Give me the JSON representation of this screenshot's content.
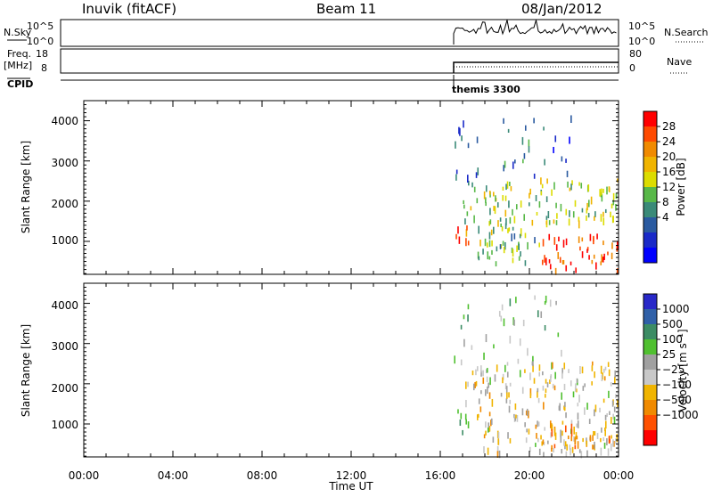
{
  "header": {
    "station": "Inuvik (fitACF)",
    "beam": "Beam 11",
    "date": "08/Jan/2012"
  },
  "top_panels": {
    "nsky_label": "N.Sky",
    "nsky_ticks": [
      "10^5",
      "10^0"
    ],
    "nsearch_label": "N.Search",
    "nsearch_ticks": [
      "10^5",
      "10^0"
    ],
    "freq_label": "Freq.",
    "freq_unit": "[MHz]",
    "freq_ticks": [
      "18",
      "8"
    ],
    "nave_label": "Nave",
    "nave_ticks": [
      "80",
      "0"
    ],
    "cpid_label": "CPID",
    "cpid_value": "themis 3300",
    "data_start_hour": 16.6
  },
  "power_panel": {
    "ylabel": "Slant Range [km]",
    "yticks": [
      "4000",
      "3000",
      "2000",
      "1000"
    ],
    "colorbar_label": "Power [dB]",
    "colorbar_ticks": [
      "28",
      "24",
      "20",
      "16",
      "12",
      "8",
      "4"
    ],
    "colorbar_colors": [
      "#ff0000",
      "#ff4a00",
      "#f08a00",
      "#f0b400",
      "#dcdc00",
      "#58b848",
      "#3a8a78",
      "#2a5aa0",
      "#1a2ac8",
      "#0000ff"
    ]
  },
  "velocity_panel": {
    "ylabel": "Slant Range [km]",
    "yticks": [
      "4000",
      "3000",
      "2000",
      "1000"
    ],
    "colorbar_label": "Velocity  [m s⁻¹]",
    "colorbar_ticks": [
      "1000",
      "500",
      "100",
      "25",
      "−25",
      "−100",
      "−500",
      "−1000"
    ],
    "colorbar_colors": [
      "#2828c8",
      "#3060a8",
      "#3c8c64",
      "#50c030",
      "#a0a0a0",
      "#c8c8c8",
      "#f0b400",
      "#f08a00",
      "#ff5000",
      "#ff0000"
    ]
  },
  "x_axis": {
    "xlabel": "Time UT",
    "tick_labels": [
      "00:00",
      "04:00",
      "08:00",
      "12:00",
      "16:00",
      "20:00",
      "00:00"
    ]
  },
  "chart_data": [
    {
      "type": "heatmap",
      "title": "Power [dB]",
      "xlabel": "Time UT",
      "ylabel": "Slant Range [km]",
      "xlim_hours": [
        0,
        24
      ],
      "ylim": [
        180,
        4500
      ],
      "data_present_hours": [
        16.6,
        24
      ],
      "clim": [
        0,
        32
      ],
      "echo_regions": [
        {
          "t_start": 16.6,
          "t_end": 17.4,
          "range_min": 900,
          "range_max": 1500,
          "typical_value": 26
        },
        {
          "t_start": 17.4,
          "t_end": 20.5,
          "range_min": 500,
          "range_max": 1500,
          "typical_value": 14
        },
        {
          "t_start": 20.5,
          "t_end": 24.0,
          "range_min": 300,
          "range_max": 1200,
          "typical_value": 28
        },
        {
          "t_start": 17.0,
          "t_end": 24.0,
          "range_min": 1500,
          "range_max": 2600,
          "typical_value": 16
        },
        {
          "t_start": 16.6,
          "t_end": 22.0,
          "range_min": 2600,
          "range_max": 4200,
          "typical_value": 8
        }
      ]
    },
    {
      "type": "heatmap",
      "title": "Velocity [m s-1]",
      "xlabel": "Time UT",
      "ylabel": "Slant Range [km]",
      "xlim_hours": [
        0,
        24
      ],
      "ylim": [
        180,
        4500
      ],
      "data_present_hours": [
        16.6,
        24
      ],
      "clim": [
        -1200,
        1200
      ],
      "echo_regions": [
        {
          "t_start": 16.6,
          "t_end": 17.4,
          "range_min": 800,
          "range_max": 1400,
          "typical_value": 300
        },
        {
          "t_start": 17.4,
          "t_end": 24.0,
          "range_min": 300,
          "range_max": 1500,
          "typical_value": -150
        },
        {
          "t_start": 20.5,
          "t_end": 24.0,
          "range_min": 400,
          "range_max": 1100,
          "typical_value": -500
        },
        {
          "t_start": 17.0,
          "t_end": 24.0,
          "range_min": 1500,
          "range_max": 2600,
          "typical_value": -100
        },
        {
          "t_start": 16.6,
          "t_end": 22.0,
          "range_min": 2600,
          "range_max": 4200,
          "typical_value": 200
        }
      ]
    }
  ]
}
